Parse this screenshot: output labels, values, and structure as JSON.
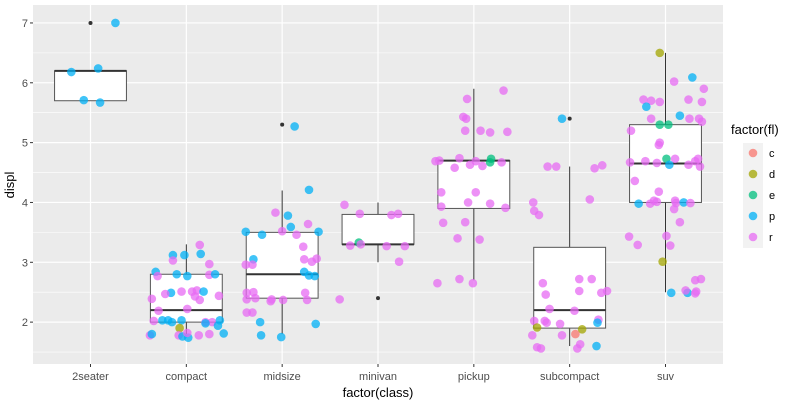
{
  "chart_data": {
    "type": "boxplot-jitter",
    "title": "",
    "xlabel": "factor(class)",
    "ylabel": "displ",
    "ylim": [
      1.3,
      7.3
    ],
    "yticks": [
      2,
      3,
      4,
      5,
      6,
      7
    ],
    "grid": true,
    "categories": [
      "2seater",
      "compact",
      "midsize",
      "minivan",
      "pickup",
      "subcompact",
      "suv"
    ],
    "boxes": [
      {
        "category": "2seater",
        "lower": 5.7,
        "q1": 5.7,
        "median": 6.2,
        "q3": 6.2,
        "upper": 6.2,
        "outliers": [
          7.0
        ]
      },
      {
        "category": "compact",
        "lower": 1.8,
        "q1": 2.0,
        "median": 2.2,
        "q3": 2.8,
        "upper": 3.3,
        "outliers": []
      },
      {
        "category": "midsize",
        "lower": 1.8,
        "q1": 2.4,
        "median": 2.8,
        "q3": 3.5,
        "upper": 4.2,
        "outliers": [
          5.3
        ]
      },
      {
        "category": "minivan",
        "lower": 3.0,
        "q1": 3.3,
        "median": 3.3,
        "q3": 3.8,
        "upper": 4.0,
        "outliers": [
          2.4
        ]
      },
      {
        "category": "pickup",
        "lower": 2.7,
        "q1": 3.9,
        "median": 4.7,
        "q3": 4.7,
        "upper": 5.9,
        "outliers": []
      },
      {
        "category": "subcompact",
        "lower": 1.6,
        "q1": 1.9,
        "median": 2.2,
        "q3": 3.25,
        "upper": 4.6,
        "outliers": [
          5.4
        ]
      },
      {
        "category": "suv",
        "lower": 2.5,
        "q1": 4.0,
        "median": 4.65,
        "q3": 5.3,
        "upper": 6.5,
        "outliers": []
      }
    ],
    "points_format": [
      "category",
      "jitter",
      "displ",
      "fl"
    ],
    "points": [
      [
        "2seater",
        -0.2,
        6.18,
        "p"
      ],
      [
        "2seater",
        0.08,
        6.24,
        "p"
      ],
      [
        "2seater",
        -0.07,
        5.71,
        "p"
      ],
      [
        "2seater",
        0.1,
        5.67,
        "p"
      ],
      [
        "2seater",
        0.26,
        7.0,
        "p"
      ],
      [
        "compact",
        -0.32,
        2.84,
        "p"
      ],
      [
        "compact",
        -0.3,
        2.77,
        "r"
      ],
      [
        "compact",
        -0.14,
        3.12,
        "p"
      ],
      [
        "compact",
        -0.02,
        3.12,
        "p"
      ],
      [
        "compact",
        -0.14,
        3.03,
        "r"
      ],
      [
        "compact",
        -0.1,
        2.8,
        "p"
      ],
      [
        "compact",
        0.01,
        2.77,
        "p"
      ],
      [
        "compact",
        0.15,
        3.14,
        "p"
      ],
      [
        "compact",
        0.14,
        3.29,
        "r"
      ],
      [
        "compact",
        0.24,
        2.97,
        "r"
      ],
      [
        "compact",
        0.24,
        2.79,
        "r"
      ],
      [
        "compact",
        0.3,
        2.8,
        "p"
      ],
      [
        "compact",
        -0.16,
        2.49,
        "p"
      ],
      [
        "compact",
        -0.22,
        2.47,
        "r"
      ],
      [
        "compact",
        -0.05,
        2.51,
        "r"
      ],
      [
        "compact",
        0.06,
        2.51,
        "r"
      ],
      [
        "compact",
        0.11,
        2.53,
        "r"
      ],
      [
        "compact",
        0.09,
        2.43,
        "r"
      ],
      [
        "compact",
        0.14,
        2.37,
        "r"
      ],
      [
        "compact",
        0.18,
        2.51,
        "p"
      ],
      [
        "compact",
        0.34,
        2.44,
        "r"
      ],
      [
        "compact",
        -0.36,
        2.39,
        "r"
      ],
      [
        "compact",
        -0.29,
        2.19,
        "r"
      ],
      [
        "compact",
        0.01,
        2.22,
        "r"
      ],
      [
        "compact",
        -0.34,
        2.02,
        "r"
      ],
      [
        "compact",
        -0.25,
        2.03,
        "p"
      ],
      [
        "compact",
        -0.19,
        2.03,
        "p"
      ],
      [
        "compact",
        -0.15,
        2.0,
        "p"
      ],
      [
        "compact",
        -0.05,
        2.03,
        "p"
      ],
      [
        "compact",
        0.2,
        2.0,
        "r"
      ],
      [
        "compact",
        0.27,
        2.0,
        "r"
      ],
      [
        "compact",
        0.2,
        1.98,
        "p"
      ],
      [
        "compact",
        0.35,
        2.03,
        "p"
      ],
      [
        "compact",
        0.33,
        1.94,
        "p"
      ],
      [
        "compact",
        -0.07,
        1.9,
        "d"
      ],
      [
        "compact",
        -0.38,
        1.78,
        "r"
      ],
      [
        "compact",
        -0.36,
        1.8,
        "p"
      ],
      [
        "compact",
        -0.08,
        1.78,
        "r"
      ],
      [
        "compact",
        -0.04,
        1.76,
        "p"
      ],
      [
        "compact",
        0.02,
        1.74,
        "p"
      ],
      [
        "compact",
        0.13,
        1.78,
        "r"
      ],
      [
        "compact",
        0.24,
        1.8,
        "r"
      ],
      [
        "compact",
        0.39,
        1.81,
        "p"
      ],
      [
        "compact",
        0.01,
        1.82,
        "r"
      ],
      [
        "midsize",
        0.13,
        5.27,
        "p"
      ],
      [
        "midsize",
        0.28,
        4.21,
        "p"
      ],
      [
        "midsize",
        -0.07,
        3.83,
        "r"
      ],
      [
        "midsize",
        0.06,
        3.78,
        "p"
      ],
      [
        "midsize",
        0.09,
        3.59,
        "p"
      ],
      [
        "midsize",
        0.27,
        3.64,
        "r"
      ],
      [
        "midsize",
        -0.38,
        3.51,
        "p"
      ],
      [
        "midsize",
        -0.21,
        3.46,
        "p"
      ],
      [
        "midsize",
        0.0,
        3.52,
        "r"
      ],
      [
        "midsize",
        0.15,
        3.46,
        "r"
      ],
      [
        "midsize",
        0.38,
        3.51,
        "p"
      ],
      [
        "midsize",
        0.22,
        3.26,
        "r"
      ],
      [
        "midsize",
        -0.3,
        3.05,
        "p"
      ],
      [
        "midsize",
        -0.38,
        2.96,
        "r"
      ],
      [
        "midsize",
        -0.31,
        2.96,
        "r"
      ],
      [
        "midsize",
        0.23,
        3.05,
        "r"
      ],
      [
        "midsize",
        0.31,
        3.01,
        "r"
      ],
      [
        "midsize",
        0.36,
        3.06,
        "r"
      ],
      [
        "midsize",
        0.23,
        2.84,
        "p"
      ],
      [
        "midsize",
        0.28,
        2.78,
        "p"
      ],
      [
        "midsize",
        0.34,
        2.77,
        "p"
      ],
      [
        "midsize",
        -0.37,
        2.49,
        "r"
      ],
      [
        "midsize",
        -0.3,
        2.5,
        "r"
      ],
      [
        "midsize",
        -0.37,
        2.38,
        "r"
      ],
      [
        "midsize",
        -0.28,
        2.4,
        "r"
      ],
      [
        "midsize",
        -0.12,
        2.35,
        "r"
      ],
      [
        "midsize",
        -0.11,
        2.38,
        "r"
      ],
      [
        "midsize",
        0.01,
        2.37,
        "r"
      ],
      [
        "midsize",
        0.24,
        2.49,
        "r"
      ],
      [
        "midsize",
        0.26,
        2.37,
        "r"
      ],
      [
        "midsize",
        -0.37,
        2.16,
        "r"
      ],
      [
        "midsize",
        -0.31,
        2.16,
        "r"
      ],
      [
        "midsize",
        -0.23,
        2.0,
        "p"
      ],
      [
        "midsize",
        -0.22,
        1.78,
        "p"
      ],
      [
        "midsize",
        -0.01,
        1.75,
        "p"
      ],
      [
        "midsize",
        0.35,
        1.97,
        "p"
      ],
      [
        "minivan",
        -0.35,
        3.96,
        "r"
      ],
      [
        "minivan",
        -0.19,
        3.81,
        "r"
      ],
      [
        "minivan",
        -0.2,
        3.33,
        "e"
      ],
      [
        "minivan",
        -0.29,
        3.28,
        "r"
      ],
      [
        "minivan",
        -0.18,
        3.3,
        "r"
      ],
      [
        "minivan",
        0.09,
        3.27,
        "r"
      ],
      [
        "minivan",
        0.14,
        3.79,
        "r"
      ],
      [
        "minivan",
        0.21,
        3.81,
        "r"
      ],
      [
        "minivan",
        0.22,
        3.01,
        "r"
      ],
      [
        "minivan",
        -0.4,
        2.38,
        "r"
      ],
      [
        "minivan",
        0.28,
        3.27,
        "r"
      ],
      [
        "pickup",
        0.31,
        5.87,
        "r"
      ],
      [
        "pickup",
        -0.07,
        5.73,
        "r"
      ],
      [
        "pickup",
        -0.11,
        5.43,
        "r"
      ],
      [
        "pickup",
        -0.08,
        5.4,
        "r"
      ],
      [
        "pickup",
        -0.09,
        5.2,
        "r"
      ],
      [
        "pickup",
        0.07,
        5.2,
        "r"
      ],
      [
        "pickup",
        0.17,
        5.17,
        "r"
      ],
      [
        "pickup",
        0.35,
        5.18,
        "r"
      ],
      [
        "pickup",
        -0.4,
        4.69,
        "r"
      ],
      [
        "pickup",
        -0.36,
        4.7,
        "r"
      ],
      [
        "pickup",
        -0.15,
        4.74,
        "r"
      ],
      [
        "pickup",
        -0.2,
        4.58,
        "r"
      ],
      [
        "pickup",
        -0.04,
        4.63,
        "r"
      ],
      [
        "pickup",
        0.02,
        4.69,
        "r"
      ],
      [
        "pickup",
        0.09,
        4.61,
        "r"
      ],
      [
        "pickup",
        0.18,
        4.73,
        "e"
      ],
      [
        "pickup",
        0.17,
        4.67,
        "e"
      ],
      [
        "pickup",
        0.29,
        4.67,
        "r"
      ],
      [
        "pickup",
        -0.34,
        4.17,
        "r"
      ],
      [
        "pickup",
        0.02,
        4.17,
        "r"
      ],
      [
        "pickup",
        -0.34,
        3.93,
        "r"
      ],
      [
        "pickup",
        -0.06,
        4.0,
        "r"
      ],
      [
        "pickup",
        0.17,
        3.98,
        "r"
      ],
      [
        "pickup",
        0.33,
        3.91,
        "r"
      ],
      [
        "pickup",
        -0.32,
        3.66,
        "r"
      ],
      [
        "pickup",
        -0.09,
        3.67,
        "r"
      ],
      [
        "pickup",
        -0.17,
        3.4,
        "r"
      ],
      [
        "pickup",
        0.06,
        3.38,
        "r"
      ],
      [
        "pickup",
        -0.38,
        2.65,
        "r"
      ],
      [
        "pickup",
        -0.15,
        2.72,
        "r"
      ],
      [
        "pickup",
        -0.01,
        2.65,
        "r"
      ],
      [
        "subcompact",
        -0.08,
        5.4,
        "p"
      ],
      [
        "subcompact",
        -0.23,
        4.6,
        "r"
      ],
      [
        "subcompact",
        -0.14,
        4.6,
        "r"
      ],
      [
        "subcompact",
        0.26,
        4.57,
        "r"
      ],
      [
        "subcompact",
        0.34,
        4.62,
        "r"
      ],
      [
        "subcompact",
        -0.38,
        4.0,
        "r"
      ],
      [
        "subcompact",
        -0.37,
        3.86,
        "r"
      ],
      [
        "subcompact",
        -0.32,
        3.79,
        "r"
      ],
      [
        "subcompact",
        0.21,
        4.05,
        "r"
      ],
      [
        "subcompact",
        -0.28,
        2.65,
        "r"
      ],
      [
        "subcompact",
        -0.25,
        2.46,
        "r"
      ],
      [
        "subcompact",
        0.1,
        2.72,
        "r"
      ],
      [
        "subcompact",
        0.23,
        2.72,
        "r"
      ],
      [
        "subcompact",
        0.1,
        2.52,
        "r"
      ],
      [
        "subcompact",
        0.33,
        2.49,
        "r"
      ],
      [
        "subcompact",
        0.39,
        2.52,
        "r"
      ],
      [
        "subcompact",
        -0.21,
        2.22,
        "r"
      ],
      [
        "subcompact",
        0.05,
        2.19,
        "r"
      ],
      [
        "subcompact",
        -0.37,
        2.02,
        "r"
      ],
      [
        "subcompact",
        -0.26,
        2.02,
        "r"
      ],
      [
        "subcompact",
        -0.24,
        1.99,
        "r"
      ],
      [
        "subcompact",
        -0.1,
        1.97,
        "r"
      ],
      [
        "subcompact",
        0.3,
        2.04,
        "r"
      ],
      [
        "subcompact",
        0.29,
        1.99,
        "p"
      ],
      [
        "subcompact",
        -0.34,
        1.91,
        "d"
      ],
      [
        "subcompact",
        0.13,
        1.88,
        "d"
      ],
      [
        "subcompact",
        0.06,
        1.8,
        "c"
      ],
      [
        "subcompact",
        -0.39,
        1.78,
        "r"
      ],
      [
        "subcompact",
        -0.08,
        1.78,
        "r"
      ],
      [
        "subcompact",
        -0.34,
        1.58,
        "r"
      ],
      [
        "subcompact",
        -0.3,
        1.56,
        "r"
      ],
      [
        "subcompact",
        0.11,
        1.63,
        "r"
      ],
      [
        "subcompact",
        0.08,
        1.56,
        "r"
      ],
      [
        "subcompact",
        0.28,
        1.6,
        "p"
      ],
      [
        "suv",
        -0.06,
        6.5,
        "d"
      ],
      [
        "suv",
        0.09,
        6.02,
        "r"
      ],
      [
        "suv",
        0.28,
        6.09,
        "p"
      ],
      [
        "suv",
        0.4,
        5.9,
        "r"
      ],
      [
        "suv",
        -0.23,
        5.72,
        "r"
      ],
      [
        "suv",
        -0.15,
        5.7,
        "r"
      ],
      [
        "suv",
        -0.06,
        5.68,
        "r"
      ],
      [
        "suv",
        0.24,
        5.72,
        "r"
      ],
      [
        "suv",
        0.38,
        5.68,
        "r"
      ],
      [
        "suv",
        -0.2,
        5.6,
        "p"
      ],
      [
        "suv",
        -0.15,
        5.4,
        "r"
      ],
      [
        "suv",
        0.15,
        5.45,
        "p"
      ],
      [
        "suv",
        0.25,
        5.4,
        "r"
      ],
      [
        "suv",
        0.35,
        5.4,
        "r"
      ],
      [
        "suv",
        0.38,
        5.35,
        "r"
      ],
      [
        "suv",
        -0.06,
        5.3,
        "e"
      ],
      [
        "suv",
        0.03,
        5.3,
        "e"
      ],
      [
        "suv",
        -0.36,
        5.2,
        "r"
      ],
      [
        "suv",
        -0.06,
        5.0,
        "r"
      ],
      [
        "suv",
        -0.07,
        4.96,
        "r"
      ],
      [
        "suv",
        0.01,
        4.73,
        "e"
      ],
      [
        "suv",
        -0.37,
        4.67,
        "r"
      ],
      [
        "suv",
        -0.21,
        4.69,
        "r"
      ],
      [
        "suv",
        -0.09,
        4.66,
        "r"
      ],
      [
        "suv",
        0.1,
        4.73,
        "r"
      ],
      [
        "suv",
        0.04,
        4.63,
        "p"
      ],
      [
        "suv",
        0.24,
        4.63,
        "r"
      ],
      [
        "suv",
        0.31,
        4.69,
        "r"
      ],
      [
        "suv",
        0.34,
        4.73,
        "r"
      ],
      [
        "suv",
        0.36,
        4.6,
        "r"
      ],
      [
        "suv",
        -0.32,
        4.36,
        "r"
      ],
      [
        "suv",
        -0.07,
        4.18,
        "r"
      ],
      [
        "suv",
        -0.28,
        3.98,
        "p"
      ],
      [
        "suv",
        -0.16,
        3.98,
        "r"
      ],
      [
        "suv",
        -0.12,
        4.03,
        "r"
      ],
      [
        "suv",
        -0.09,
        4.01,
        "r"
      ],
      [
        "suv",
        0.1,
        4.03,
        "r"
      ],
      [
        "suv",
        0.11,
        3.99,
        "r"
      ],
      [
        "suv",
        0.19,
        4.0,
        "p"
      ],
      [
        "suv",
        0.26,
        3.99,
        "r"
      ],
      [
        "suv",
        0.09,
        3.89,
        "r"
      ],
      [
        "suv",
        0.15,
        3.67,
        "r"
      ],
      [
        "suv",
        -0.38,
        3.43,
        "r"
      ],
      [
        "suv",
        0.01,
        3.44,
        "r"
      ],
      [
        "suv",
        -0.29,
        3.29,
        "r"
      ],
      [
        "suv",
        0.05,
        3.28,
        "r"
      ],
      [
        "suv",
        -0.03,
        3.01,
        "d"
      ],
      [
        "suv",
        0.31,
        2.7,
        "r"
      ],
      [
        "suv",
        0.37,
        2.72,
        "r"
      ],
      [
        "suv",
        0.06,
        2.49,
        "p"
      ],
      [
        "suv",
        0.23,
        2.49,
        "p"
      ],
      [
        "suv",
        0.21,
        2.53,
        "r"
      ],
      [
        "suv",
        0.32,
        2.51,
        "r"
      ],
      [
        "suv",
        0.31,
        2.48,
        "r"
      ]
    ],
    "legend": {
      "title": "factor(fl)",
      "placement": "right",
      "entries": [
        {
          "label": "c",
          "color": "#F8766D"
        },
        {
          "label": "d",
          "color": "#A3A500"
        },
        {
          "label": "e",
          "color": "#00BF7D"
        },
        {
          "label": "p",
          "color": "#00B0F6"
        },
        {
          "label": "r",
          "color": "#E76BF3"
        }
      ]
    },
    "colors": {
      "panel": "#EBEBEB",
      "grid": "#FFFFFF",
      "box_fill": "#FFFFFF",
      "box_line": "#333333",
      "outlier": "#333333"
    }
  }
}
